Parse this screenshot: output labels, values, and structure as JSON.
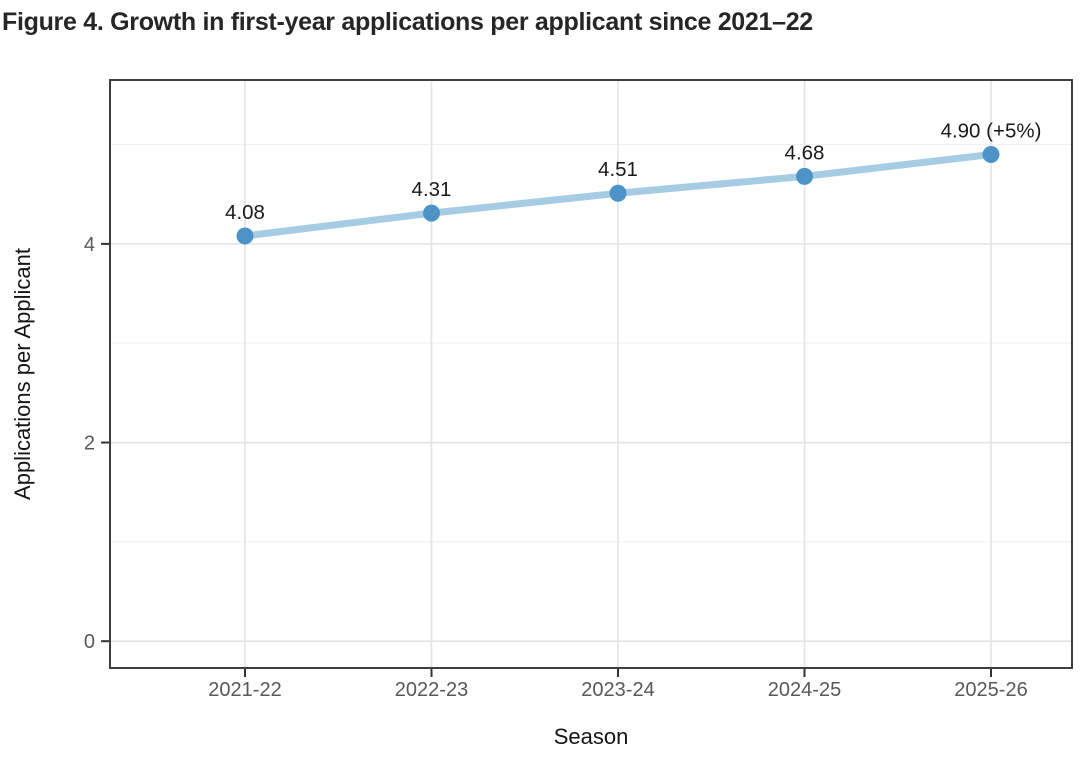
{
  "title": "Figure 4. Growth in first-year applications per applicant since 2021–22",
  "chart_data": {
    "type": "line",
    "categories": [
      "2021-22",
      "2022-23",
      "2023-24",
      "2024-25",
      "2025-26"
    ],
    "series": [
      {
        "name": "Applications per Applicant",
        "values": [
          4.08,
          4.31,
          4.51,
          4.68,
          4.9
        ],
        "point_labels": [
          "4.08",
          "4.31",
          "4.51",
          "4.68",
          "4.90 (+5%)"
        ]
      }
    ],
    "title": "Figure 4. Growth in first-year applications per applicant since 2021–22",
    "xlabel": "Season",
    "ylabel": "Applications per Applicant",
    "y_major_ticks": [
      0,
      2,
      4
    ],
    "y_minor_gridlines": [
      1,
      3,
      5
    ],
    "ylim": [
      -0.27,
      5.65
    ],
    "grid": "on",
    "legend": "none",
    "colors": {
      "line": "#a6cce4",
      "point": "#4e93c6",
      "grid_major": "#e3e3e3",
      "grid_minor": "#f0f0f0",
      "panel_border": "#3e3e3e",
      "tick_mark": "#333333",
      "tick_label": "#585858",
      "axis_title": "#151515",
      "data_label": "#1a1a1a",
      "title": "#262626",
      "background": "#ffffff"
    }
  }
}
